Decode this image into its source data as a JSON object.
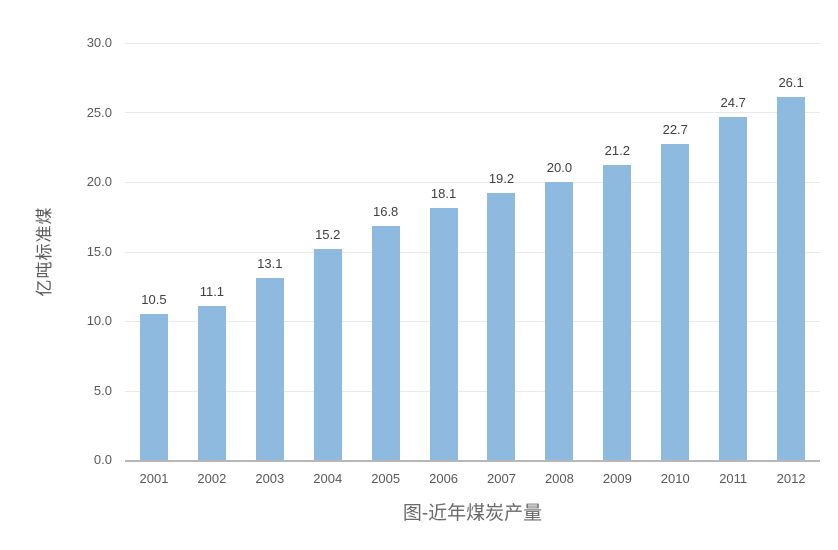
{
  "chart": {
    "title": "图-近年煤炭产量",
    "y_axis_title": "亿吨标准煤"
  },
  "chart_data": {
    "type": "bar",
    "title": "图-近年煤炭产量",
    "xlabel": "",
    "ylabel": "亿吨标准煤",
    "categories": [
      "2001",
      "2002",
      "2003",
      "2004",
      "2005",
      "2006",
      "2007",
      "2008",
      "2009",
      "2010",
      "2011",
      "2012"
    ],
    "values": [
      10.5,
      11.1,
      13.1,
      15.2,
      16.8,
      18.1,
      19.2,
      20.0,
      21.2,
      22.7,
      24.7,
      26.1
    ],
    "value_labels": [
      "10.5",
      "11.1",
      "13.1",
      "15.2",
      "16.8",
      "18.1",
      "19.2",
      "20.0",
      "21.2",
      "22.7",
      "24.7",
      "26.1"
    ],
    "ylim": [
      0,
      30
    ],
    "ytick_step": 5,
    "y_tick_labels": [
      "30.0",
      "25.0",
      "20.0",
      "15.0",
      "10.0",
      "5.0",
      "0.0"
    ],
    "grid": true,
    "legend": "none",
    "bar_color": "#8fbadf",
    "gridline_color": "#e9e9e9",
    "axis_line_color": "#b7b7b7",
    "tick_label_color": "#595959",
    "value_label_color": "#404040",
    "title_color": "#6a6a6a"
  }
}
